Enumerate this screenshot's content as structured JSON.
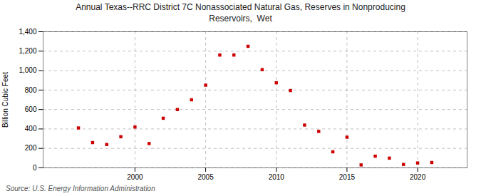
{
  "chart_data": {
    "type": "scatter",
    "title": "Annual Texas--RRC District 7C Nonassociated Natural Gas, Reserves in Nonproducing\nReservoirs,  Wet",
    "ylabel": "Billion Cubic Feet",
    "annotation": "Source: U.S. Energy Information Administration",
    "x": [
      1996,
      1997,
      1998,
      1999,
      2000,
      2001,
      2002,
      2003,
      2004,
      2005,
      2006,
      2007,
      2008,
      2009,
      2010,
      2011,
      2012,
      2013,
      2014,
      2015,
      2016,
      2017,
      2018,
      2019,
      2020,
      2021
    ],
    "values": [
      410,
      260,
      240,
      320,
      420,
      250,
      510,
      600,
      700,
      850,
      1160,
      1160,
      1250,
      1010,
      875,
      795,
      440,
      375,
      165,
      315,
      30,
      120,
      100,
      35,
      50,
      55
    ],
    "color": "#cc0000",
    "marker": "square",
    "xlim": [
      1993.5,
      2023.5
    ],
    "xticks": [
      2000,
      2005,
      2010,
      2015,
      2020
    ],
    "ylim": [
      0,
      1400
    ],
    "yticks": [
      0,
      200,
      400,
      600,
      800,
      {
        "value": 1000,
        "label": "1,000"
      },
      {
        "value": 1200,
        "label": "1,200"
      },
      {
        "value": 1400,
        "label": "1,400"
      }
    ],
    "grid": true
  }
}
